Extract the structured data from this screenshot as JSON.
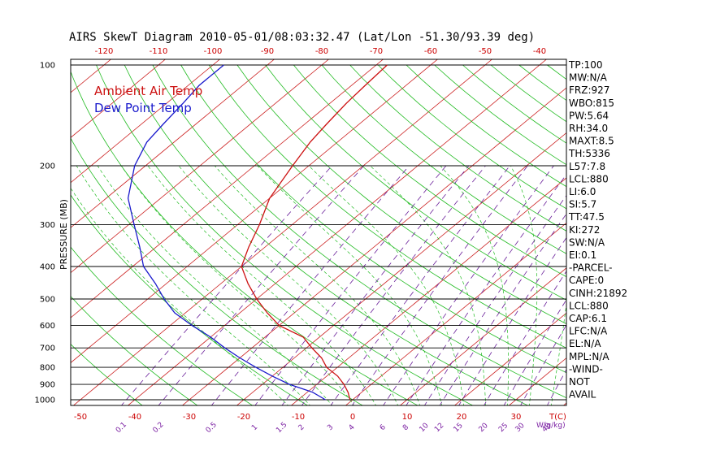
{
  "colors": {
    "temp": "#cc1111",
    "dewpoint": "#1a1acc",
    "isotherm": "#cc2222",
    "dry_adiabat": "#22bb22",
    "moist_adiabat": "#22bb22",
    "mixing_ratio": "#6a1f9a",
    "isobar": "#000000"
  },
  "chart_data": {
    "type": "line",
    "title": "AIRS SkewT Diagram 2010-05-01/08:03:32.47 (Lat/Lon -51.30/93.39 deg)",
    "ylabel": "PRESSURE (MB)",
    "xlabel_right": "T(C)",
    "mixing_label": "W(g/kg)",
    "y_scale": "log",
    "ylim": [
      1000,
      100
    ],
    "pressure_ticks": [
      100,
      200,
      300,
      400,
      500,
      600,
      700,
      800,
      900,
      1000
    ],
    "top_temp_ticks": [
      -120,
      -110,
      -100,
      -90,
      -80,
      -70,
      -60,
      -50,
      -40
    ],
    "bottom_temp_ticks": [
      -50,
      -40,
      -30,
      -20,
      -10,
      0,
      10,
      20,
      30
    ],
    "mixing_ratio_ticks": [
      "0.1",
      "0.2",
      "0.5",
      "1",
      "1.5",
      "2",
      "3",
      "4",
      "6",
      "8",
      "10",
      "12",
      "15",
      "20",
      "25",
      "30",
      "40"
    ],
    "legend": [
      "Ambient Air Temp",
      "Dew Point Temp"
    ],
    "series": [
      {
        "name": "Ambient Air Temp",
        "pressure": [
          1000,
          950,
          900,
          850,
          800,
          750,
          700,
          650,
          600,
          550,
          500,
          450,
          400,
          350,
          300,
          250,
          200,
          170,
          150,
          130,
          115,
          100
        ],
        "temperature": [
          -0.5,
          -2.5,
          -5,
          -8,
          -12,
          -15,
          -19,
          -23,
          -30,
          -35,
          -40,
          -45,
          -50,
          -53,
          -56,
          -60,
          -63,
          -65,
          -66,
          -67,
          -67.5,
          -68
        ]
      },
      {
        "name": "Dew Point Temp",
        "pressure": [
          1000,
          950,
          900,
          850,
          800,
          750,
          700,
          650,
          600,
          550,
          500,
          450,
          400,
          350,
          300,
          250,
          200,
          170,
          150,
          130,
          115,
          100
        ],
        "temperature": [
          -5,
          -9,
          -15,
          -20,
          -25,
          -30,
          -35,
          -40,
          -46,
          -52,
          -57,
          -62,
          -68,
          -73,
          -79,
          -86,
          -92,
          -95,
          -96,
          -97,
          -98,
          -98
        ]
      }
    ]
  },
  "sidebar": [
    "TP:100",
    "MW:N/A",
    "FRZ:927",
    "WBO:815",
    "PW:5.64",
    "RH:34.0",
    "MAXT:8.5",
    "TH:5336",
    "L57:7.8",
    "LCL:880",
    "LI:6.0",
    "SI:5.7",
    "TT:47.5",
    "KI:272",
    "SW:N/A",
    "EI:0.1",
    "-PARCEL-",
    "CAPE:0",
    "CINH:21892",
    "LCL:880",
    "CAP:6.1",
    "LFC:N/A",
    "EL:N/A",
    "MPL:N/A",
    "-WIND-",
    "NOT",
    "AVAIL"
  ]
}
